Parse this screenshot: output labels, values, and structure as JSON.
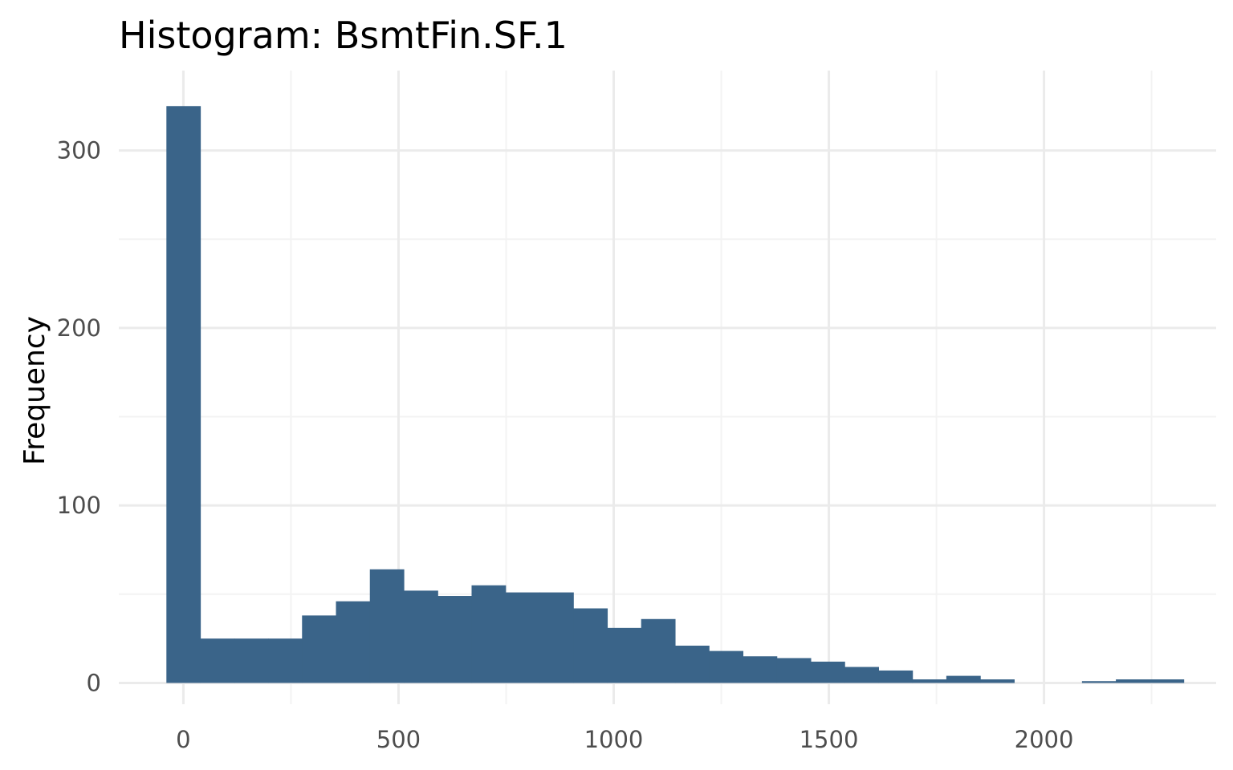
{
  "chart_data": {
    "type": "bar",
    "title": "Histogram:  BsmtFin.SF.1",
    "xlabel": "",
    "ylabel": "Frequency",
    "bin_edges": [
      -39.4,
      39.4,
      118.2,
      197.0,
      275.8,
      354.6,
      433.4,
      512.2,
      591.0,
      669.8,
      748.6,
      827.4,
      906.2,
      985.0,
      1063.8,
      1142.6,
      1221.4,
      1300.2,
      1379.0,
      1457.8,
      1536.6,
      1615.4,
      1694.2,
      1773.0,
      1851.8,
      1930.6,
      2009.4,
      2088.2,
      2167.0,
      2245.8,
      2324.6
    ],
    "values": [
      325,
      25,
      25,
      25,
      38,
      46,
      64,
      52,
      49,
      55,
      51,
      51,
      42,
      31,
      36,
      21,
      18,
      15,
      14,
      12,
      9,
      7,
      2,
      4,
      2,
      0,
      0,
      1,
      2,
      2
    ],
    "xlim": [
      -150,
      2400
    ],
    "ylim": [
      -12,
      345
    ],
    "x_ticks": [
      0,
      500,
      1000,
      1500,
      2000
    ],
    "x_tick_labels": [
      "0",
      "500",
      "1000",
      "1500",
      "2000"
    ],
    "y_ticks": [
      0,
      100,
      200,
      300
    ],
    "y_tick_labels": [
      "0",
      "100",
      "200",
      "300"
    ],
    "grid": true,
    "bar_color": "#3a6489",
    "legend": "none"
  }
}
